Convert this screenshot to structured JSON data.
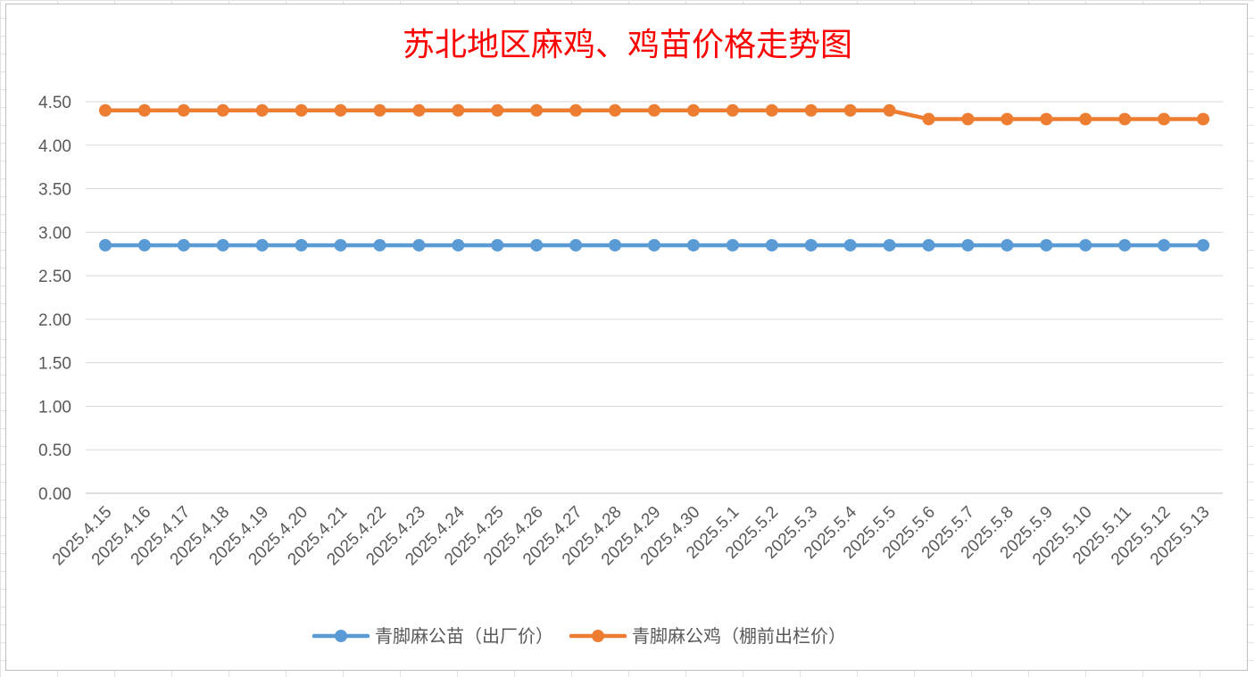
{
  "chart_data": {
    "type": "line",
    "title": "苏北地区麻鸡、鸡苗价格走势图",
    "xlabel": "",
    "ylabel": "",
    "ylim": [
      0,
      4.5
    ],
    "yticks": [
      "0.00",
      "0.50",
      "1.00",
      "1.50",
      "2.00",
      "2.50",
      "3.00",
      "3.50",
      "4.00",
      "4.50"
    ],
    "grid": true,
    "legend_position": "bottom",
    "categories": [
      "2025.4.15",
      "2025.4.16",
      "2025.4.17",
      "2025.4.18",
      "2025.4.19",
      "2025.4.20",
      "2025.4.21",
      "2025.4.22",
      "2025.4.23",
      "2025.4.24",
      "2025.4.25",
      "2025.4.26",
      "2025.4.27",
      "2025.4.28",
      "2025.4.29",
      "2025.4.30",
      "2025.5.1",
      "2025.5.2",
      "2025.5.3",
      "2025.5.4",
      "2025.5.5",
      "2025.5.6",
      "2025.5.7",
      "2025.5.8",
      "2025.5.9",
      "2025.5.10",
      "2025.5.11",
      "2025.5.12",
      "2025.5.13"
    ],
    "series": [
      {
        "name": "青脚麻公苗（出厂价）",
        "color": "#5b9bd5",
        "values": [
          2.85,
          2.85,
          2.85,
          2.85,
          2.85,
          2.85,
          2.85,
          2.85,
          2.85,
          2.85,
          2.85,
          2.85,
          2.85,
          2.85,
          2.85,
          2.85,
          2.85,
          2.85,
          2.85,
          2.85,
          2.85,
          2.85,
          2.85,
          2.85,
          2.85,
          2.85,
          2.85,
          2.85,
          2.85
        ]
      },
      {
        "name": "青脚麻公鸡（棚前出栏价）",
        "color": "#ed7d31",
        "values": [
          4.4,
          4.4,
          4.4,
          4.4,
          4.4,
          4.4,
          4.4,
          4.4,
          4.4,
          4.4,
          4.4,
          4.4,
          4.4,
          4.4,
          4.4,
          4.4,
          4.4,
          4.4,
          4.4,
          4.4,
          4.4,
          4.3,
          4.3,
          4.3,
          4.3,
          4.3,
          4.3,
          4.3,
          4.3
        ]
      }
    ]
  }
}
